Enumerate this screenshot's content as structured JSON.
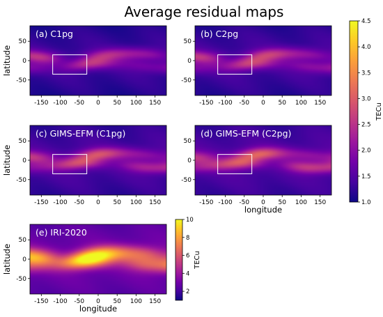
{
  "figure": {
    "title": "Average residual maps",
    "xlabel": "longitude",
    "ylabel": "latitude"
  },
  "colors": {
    "plasma": [
      "#0d0887",
      "#46039f",
      "#7201a8",
      "#9c179e",
      "#bd3786",
      "#d8576b",
      "#ed7953",
      "#fb9f3a",
      "#fdca26",
      "#f0f921"
    ],
    "box": "#ffffff",
    "panel_label": "#ffffff"
  },
  "chart_data": [
    {
      "type": "heatmap",
      "label": "(a) C1pg",
      "x_ticks": [
        -150,
        -100,
        -50,
        0,
        50,
        100,
        150
      ],
      "y_ticks": [
        50,
        0,
        -50
      ],
      "xlim": [
        -180,
        180
      ],
      "ylim": [
        -90,
        90
      ],
      "clim": [
        1.0,
        4.5
      ],
      "colorbar_label": "TECu",
      "colorbar_ticks": [
        1.0,
        1.5,
        2.0,
        2.5,
        3.0,
        3.5,
        4.0,
        4.5
      ],
      "region_box": {
        "lon": [
          -120,
          -30
        ],
        "lat": [
          -35,
          15
        ]
      },
      "bands": [
        {
          "lat": 12,
          "width": 11,
          "amp": 1.1,
          "phase": 0.0
        },
        {
          "lat": -13,
          "width": 11,
          "amp": 1.0,
          "phase": 1.2
        }
      ],
      "base": 1.35
    },
    {
      "type": "heatmap",
      "label": "(b) C2pg",
      "x_ticks": [
        -150,
        -100,
        -50,
        0,
        50,
        100,
        150
      ],
      "y_ticks": [
        50,
        0,
        -50
      ],
      "xlim": [
        -180,
        180
      ],
      "ylim": [
        -90,
        90
      ],
      "clim": [
        1.0,
        4.5
      ],
      "region_box": {
        "lon": [
          -120,
          -30
        ],
        "lat": [
          -35,
          15
        ]
      },
      "bands": [
        {
          "lat": 12,
          "width": 11,
          "amp": 1.2,
          "phase": 0.3
        },
        {
          "lat": -13,
          "width": 11,
          "amp": 1.1,
          "phase": 1.5
        }
      ],
      "base": 1.4
    },
    {
      "type": "heatmap",
      "label": "(c) GIMS-EFM (C1pg)",
      "x_ticks": [
        -150,
        -100,
        -50,
        0,
        50,
        100,
        150
      ],
      "y_ticks": [
        50,
        0,
        -50
      ],
      "xlim": [
        -180,
        180
      ],
      "ylim": [
        -90,
        90
      ],
      "clim": [
        1.0,
        4.5
      ],
      "region_box": {
        "lon": [
          -120,
          -30
        ],
        "lat": [
          -35,
          15
        ]
      },
      "bands": [
        {
          "lat": 12,
          "width": 11,
          "amp": 1.3,
          "phase": 0.6
        },
        {
          "lat": -13,
          "width": 11,
          "amp": 1.2,
          "phase": 1.9
        }
      ],
      "base": 1.45
    },
    {
      "type": "heatmap",
      "label": "(d) GIMS-EFM (C2pg)",
      "x_ticks": [
        -150,
        -100,
        -50,
        0,
        50,
        100,
        150
      ],
      "y_ticks": [
        50,
        0,
        -50
      ],
      "xlim": [
        -180,
        180
      ],
      "ylim": [
        -90,
        90
      ],
      "clim": [
        1.0,
        4.5
      ],
      "region_box": {
        "lon": [
          -120,
          -30
        ],
        "lat": [
          -35,
          15
        ]
      },
      "bands": [
        {
          "lat": 12,
          "width": 11,
          "amp": 1.4,
          "phase": 0.9
        },
        {
          "lat": -13,
          "width": 11,
          "amp": 1.3,
          "phase": 2.2
        }
      ],
      "base": 1.5
    },
    {
      "type": "heatmap",
      "label": "(e) IRI-2020",
      "x_ticks": [
        -150,
        -100,
        -50,
        0,
        50,
        100,
        150
      ],
      "y_ticks": [
        50,
        0,
        -50
      ],
      "xlim": [
        -180,
        180
      ],
      "ylim": [
        -90,
        90
      ],
      "clim": [
        1.0,
        10.0
      ],
      "colorbar_label": "TECu",
      "colorbar_ticks": [
        2,
        4,
        6,
        8,
        10
      ],
      "bands": [
        {
          "lat": 10,
          "width": 14,
          "amp": 5.5,
          "phase": 0.4
        },
        {
          "lat": -10,
          "width": 14,
          "amp": 5.0,
          "phase": 1.6
        }
      ],
      "base": 3.0
    }
  ]
}
